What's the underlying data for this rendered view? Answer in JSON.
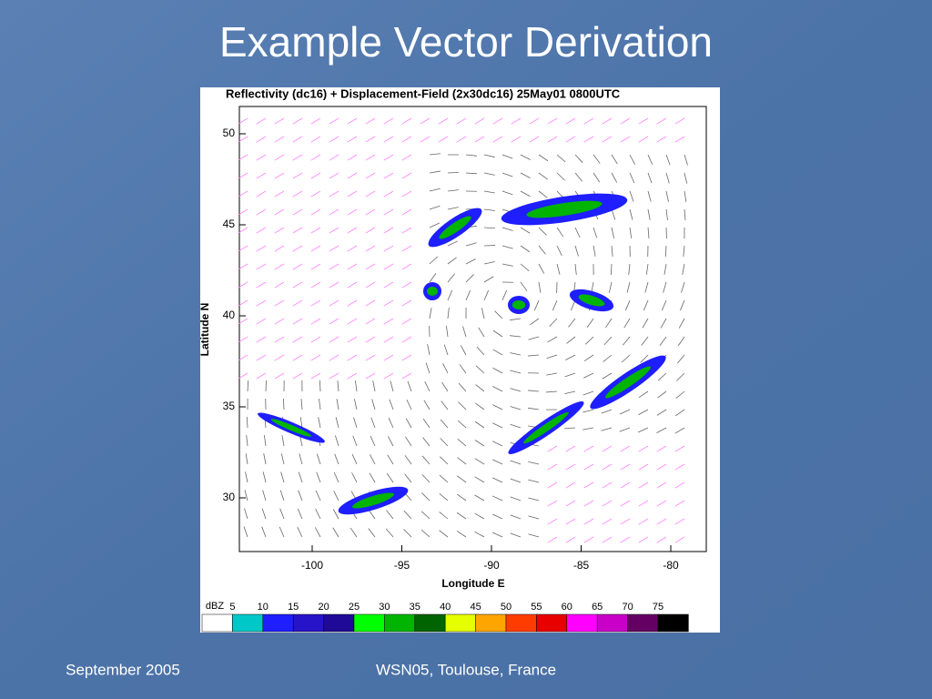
{
  "slide": {
    "title": "Example Vector Derivation"
  },
  "figure": {
    "title": "Reflectivity (dc16) + Displacement-Field (2x30dc16)  25May01 0800UTC",
    "y_label": "Latitude N",
    "x_label": "Longitude E",
    "yticks": [
      50,
      45,
      40,
      35,
      30
    ],
    "xticks": [
      -100,
      -95,
      -90,
      -85,
      -80
    ],
    "colorbar": {
      "unit": "dBZ",
      "labels": [
        5,
        10,
        15,
        20,
        25,
        30,
        35,
        40,
        45,
        50,
        55,
        60,
        65,
        70,
        75
      ],
      "colors": [
        "#ffffff",
        "#00c8c8",
        "#1e1eff",
        "#2814c8",
        "#1e0a96",
        "#00ff00",
        "#00b400",
        "#006400",
        "#e6ff00",
        "#ffa500",
        "#ff3c00",
        "#e60000",
        "#ff00ff",
        "#c800c8",
        "#640064",
        "#000000"
      ]
    }
  },
  "footer": {
    "left": "September 2005",
    "center": "WSN05, Toulouse, France"
  }
}
